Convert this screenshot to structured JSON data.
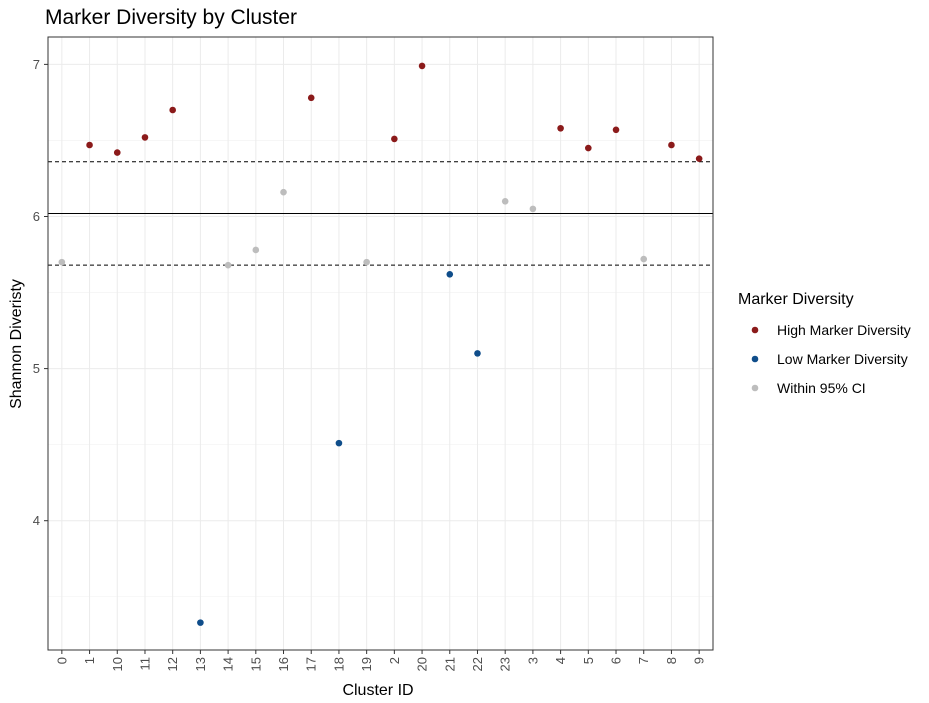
{
  "chart_data": {
    "type": "scatter",
    "title": "Marker Diversity by Cluster",
    "xlabel": "Cluster ID",
    "ylabel": "Shannon Diveristy",
    "categories": [
      "0",
      "1",
      "10",
      "11",
      "12",
      "13",
      "14",
      "15",
      "16",
      "17",
      "18",
      "19",
      "2",
      "20",
      "21",
      "22",
      "23",
      "3",
      "4",
      "5",
      "6",
      "7",
      "8",
      "9"
    ],
    "values": [
      5.7,
      6.47,
      6.42,
      6.52,
      6.7,
      3.33,
      5.68,
      5.78,
      6.16,
      6.78,
      4.51,
      5.7,
      6.51,
      6.99,
      5.62,
      5.1,
      6.1,
      6.05,
      6.58,
      6.45,
      6.57,
      5.72,
      6.47,
      6.38
    ],
    "groups": [
      "Within 95% CI",
      "High Marker Diversity",
      "High Marker Diversity",
      "High Marker Diversity",
      "High Marker Diversity",
      "Low Marker Diversity",
      "Within 95% CI",
      "Within 95% CI",
      "Within 95% CI",
      "High Marker Diversity",
      "Low Marker Diversity",
      "Within 95% CI",
      "High Marker Diversity",
      "High Marker Diversity",
      "Low Marker Diversity",
      "Low Marker Diversity",
      "Within 95% CI",
      "Within 95% CI",
      "High Marker Diversity",
      "High Marker Diversity",
      "High Marker Diversity",
      "Within 95% CI",
      "High Marker Diversity",
      "High Marker Diversity"
    ],
    "y_ticks": [
      4,
      5,
      6,
      7
    ],
    "ylim": [
      3.15,
      7.18
    ],
    "reference_lines": [
      {
        "value": 6.02,
        "style": "solid"
      },
      {
        "value": 6.36,
        "style": "dashed"
      },
      {
        "value": 5.68,
        "style": "dashed"
      }
    ],
    "legend": {
      "title": "Marker Diversity",
      "placement": "right",
      "entries": [
        {
          "label": "High Marker Diversity",
          "color": "#8b1a1a"
        },
        {
          "label": "Low Marker Diversity",
          "color": "#0f4d8a"
        },
        {
          "label": "Within 95% CI",
          "color": "#bdbdbd"
        }
      ]
    },
    "grid": true
  }
}
